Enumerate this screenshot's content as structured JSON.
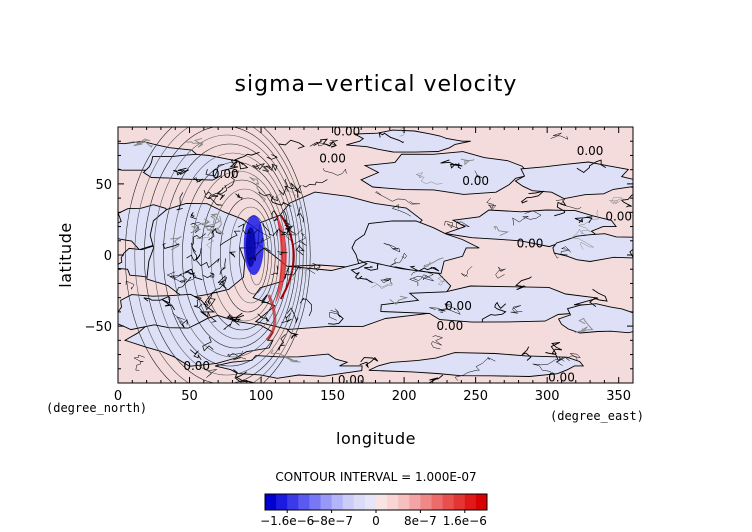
{
  "chart_data": {
    "type": "heatmap",
    "title": "sigma−vertical velocity",
    "xlabel": "longitude",
    "ylabel": "latitude",
    "x_unit": "(degree_east)",
    "y_unit": "(degree_north)",
    "xlim": [
      0,
      360
    ],
    "ylim": [
      -90,
      90
    ],
    "x_ticks": [
      0,
      50,
      100,
      150,
      200,
      250,
      300,
      350
    ],
    "y_ticks": [
      -50,
      0,
      50
    ],
    "contour_interval_text": "CONTOUR INTERVAL = 1.000E-07",
    "contour_labels": [
      {
        "text": "0.00",
        "x": 160,
        "y": 87
      },
      {
        "text": "0.00",
        "x": 330,
        "y": 73
      },
      {
        "text": "0.00",
        "x": 150,
        "y": 68
      },
      {
        "text": "0.00",
        "x": 75,
        "y": 57
      },
      {
        "text": "0.00",
        "x": 250,
        "y": 52
      },
      {
        "text": "0.00",
        "x": 350,
        "y": 27
      },
      {
        "text": "0.00",
        "x": 288,
        "y": 8
      },
      {
        "text": "0.00",
        "x": 238,
        "y": -36
      },
      {
        "text": "0.00",
        "x": 232,
        "y": -50
      },
      {
        "text": "0.00",
        "x": 55,
        "y": -78
      },
      {
        "text": "0.00",
        "x": 163,
        "y": -88
      },
      {
        "text": "0.00",
        "x": 310,
        "y": -86
      }
    ],
    "colorbar": {
      "range": [
        -2e-06,
        2e-06
      ],
      "tick_labels": [
        {
          "text": "−1.6e−6",
          "value": -1.6e-06
        },
        {
          "text": "−8e−7",
          "value": -8e-07
        },
        {
          "text": "0",
          "value": 0
        },
        {
          "text": "8e−7",
          "value": 8e-07
        },
        {
          "text": "1.6e−6",
          "value": 1.6e-06
        }
      ],
      "colors": [
        "#0000d0",
        "#1a1ae0",
        "#3a3ae8",
        "#5a5af0",
        "#7878f4",
        "#9898f6",
        "#b4b4f8",
        "#ccccf8",
        "#dcdcf8",
        "#e6e6f8",
        "#f8e4e4",
        "#f8d4d4",
        "#f6c0c0",
        "#f4a4a4",
        "#f08888",
        "#ec6c6c",
        "#e85050",
        "#e43434",
        "#e01818",
        "#d80000"
      ]
    },
    "colors": {
      "positive_fill": "#f5dcdc",
      "negative_fill": "#dde0f6",
      "strong_negative": "#1a1ae8",
      "strong_positive": "#e02020"
    }
  }
}
